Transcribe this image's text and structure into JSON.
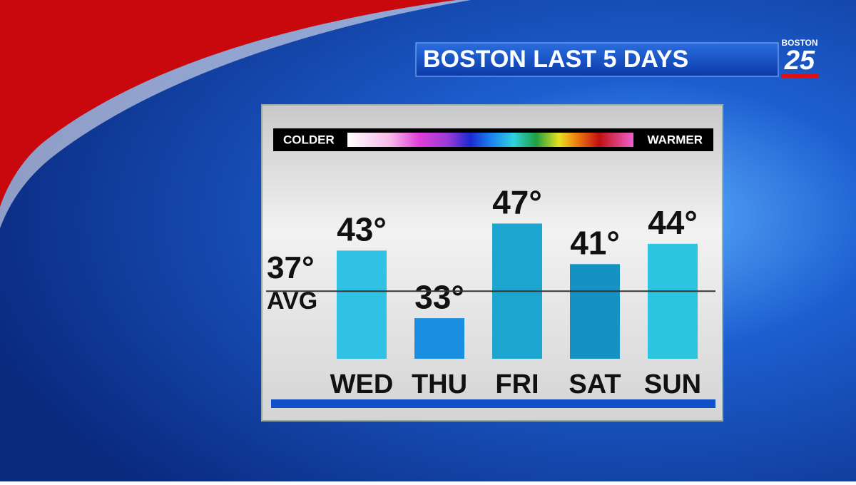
{
  "chart_data": {
    "type": "bar",
    "title": "BOSTON LAST 5 DAYS",
    "logo": {
      "top": "BOSTON",
      "number": "25"
    },
    "legend": {
      "low": "COLDER",
      "high": "WARMER"
    },
    "categories": [
      "WED",
      "THU",
      "FRI",
      "SAT",
      "SUN"
    ],
    "values": [
      43,
      33,
      47,
      41,
      44
    ],
    "value_labels": [
      "43°",
      "33°",
      "47°",
      "41°",
      "44°"
    ],
    "colors": [
      "#2fc2e4",
      "#1a8fe2",
      "#1ca5cf",
      "#1592c2",
      "#2cc4de"
    ],
    "average": {
      "value": 37,
      "label": "37°",
      "text": "AVG"
    },
    "ylim": [
      27,
      50
    ]
  }
}
